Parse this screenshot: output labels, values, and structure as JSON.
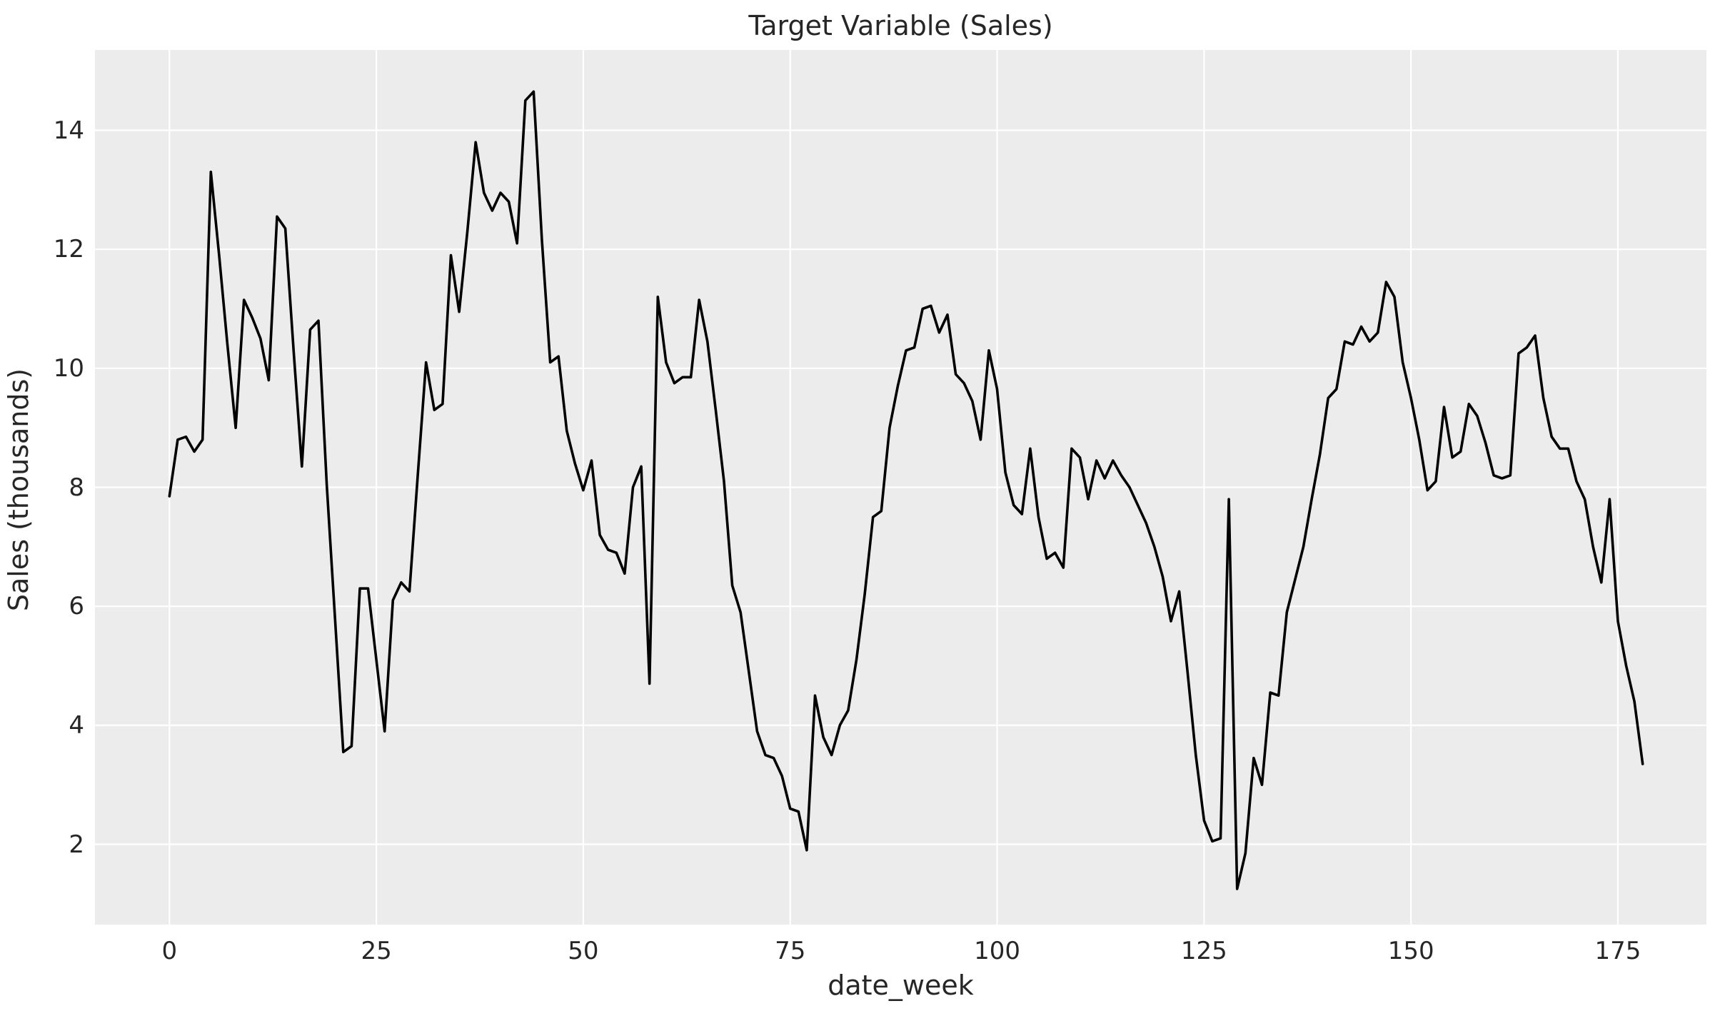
{
  "figure": {
    "title": "Target Variable (Sales)",
    "background_color": "#ffffff"
  },
  "chart_data": {
    "type": "line",
    "title": "Target Variable (Sales)",
    "xlabel": "date_week",
    "ylabel": "Sales (thousands)",
    "legend": null,
    "grid": true,
    "plot_background_color": "#ececec",
    "grid_color": "#ffffff",
    "line_color": "#000000",
    "text_color": "#262626",
    "xlim": [
      -9,
      185.7
    ],
    "ylim": [
      0.65,
      15.35
    ],
    "x_ticks": [
      0,
      25,
      50,
      75,
      100,
      125,
      150,
      175
    ],
    "y_ticks": [
      2,
      4,
      6,
      8,
      10,
      12,
      14
    ],
    "x_start": 0,
    "x_step": 1,
    "values": [
      7.85,
      8.8,
      8.85,
      8.6,
      8.8,
      13.3,
      11.9,
      10.4,
      9.0,
      11.15,
      10.85,
      10.5,
      9.8,
      12.55,
      12.35,
      10.3,
      8.35,
      10.65,
      10.8,
      8.05,
      5.8,
      3.55,
      3.65,
      6.3,
      6.3,
      5.1,
      3.9,
      6.1,
      6.4,
      6.25,
      8.2,
      10.1,
      9.3,
      9.4,
      11.9,
      10.95,
      12.3,
      13.8,
      12.95,
      12.65,
      12.95,
      12.8,
      12.1,
      14.5,
      14.65,
      12.15,
      10.1,
      10.2,
      8.95,
      8.4,
      7.95,
      8.45,
      7.2,
      6.95,
      6.9,
      6.55,
      8.0,
      8.35,
      4.7,
      11.2,
      10.1,
      9.75,
      9.85,
      9.85,
      11.15,
      10.45,
      9.3,
      8.1,
      6.35,
      5.9,
      4.9,
      3.9,
      3.5,
      3.45,
      3.15,
      2.6,
      2.55,
      1.9,
      4.5,
      3.8,
      3.5,
      4.0,
      4.25,
      5.1,
      6.2,
      7.5,
      7.6,
      9.0,
      9.7,
      10.3,
      10.35,
      11.0,
      11.05,
      10.6,
      10.9,
      9.9,
      9.75,
      9.45,
      8.8,
      10.3,
      9.65,
      8.25,
      7.7,
      7.55,
      8.65,
      7.5,
      6.8,
      6.9,
      6.65,
      8.65,
      8.5,
      7.8,
      8.45,
      8.15,
      8.45,
      8.2,
      8.0,
      7.7,
      7.4,
      7.0,
      6.5,
      5.75,
      6.25,
      4.9,
      3.5,
      2.4,
      2.05,
      2.1,
      7.8,
      1.25,
      1.85,
      3.45,
      3.0,
      4.55,
      4.5,
      5.9,
      6.45,
      7.0,
      7.8,
      8.55,
      9.5,
      9.65,
      10.45,
      10.4,
      10.7,
      10.45,
      10.6,
      11.45,
      11.2,
      10.1,
      9.5,
      8.8,
      7.95,
      8.1,
      9.35,
      8.5,
      8.6,
      9.4,
      9.2,
      8.75,
      8.2,
      8.15,
      8.2,
      10.25,
      10.35,
      10.55,
      9.5,
      8.85,
      8.65,
      8.65,
      8.1,
      7.8,
      7.0,
      6.4,
      7.8,
      5.75,
      5.0,
      4.4,
      3.35
    ]
  }
}
